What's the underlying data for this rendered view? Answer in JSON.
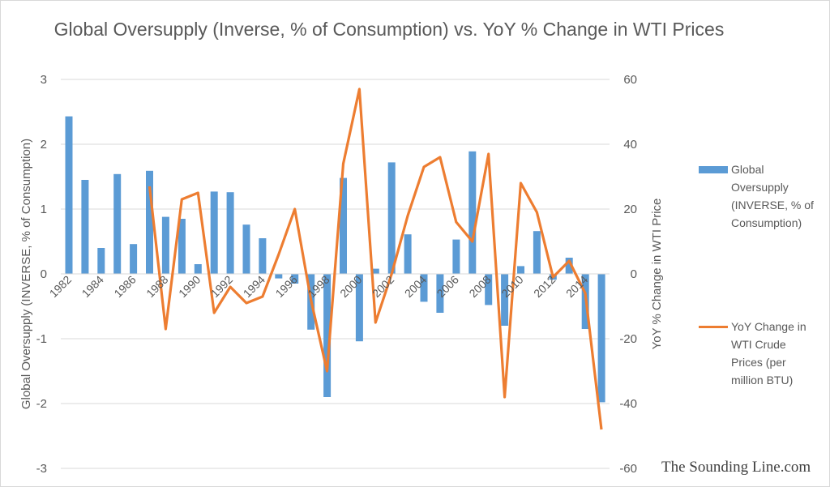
{
  "chart_data": {
    "type": "bar+line",
    "title": "Global Oversupply (Inverse, % of Consumption) vs. YoY % Change in WTI Prices",
    "ylabel_left": "Global Oversupply (INVERSE, % of Consumption)",
    "ylabel_right": "YoY % Change in WTI Price",
    "ylim_left": [
      -3,
      3
    ],
    "ylim_right": [
      -60,
      60
    ],
    "yticks_left": [
      "3",
      "2",
      "1",
      "0",
      "-1",
      "-2",
      "-3"
    ],
    "yticks_right": [
      "60",
      "40",
      "20",
      "0",
      "-20",
      "-40",
      "-60"
    ],
    "categories": [
      1982,
      1983,
      1984,
      1985,
      1986,
      1987,
      1988,
      1989,
      1990,
      1991,
      1992,
      1993,
      1994,
      1995,
      1996,
      1997,
      1998,
      1999,
      2000,
      2001,
      2002,
      2003,
      2004,
      2005,
      2006,
      2007,
      2008,
      2009,
      2010,
      2011,
      2012,
      2013,
      2014,
      2015
    ],
    "xtick_labels": [
      "1982",
      "1984",
      "1986",
      "1988",
      "1990",
      "1992",
      "1994",
      "1996",
      "1998",
      "2000",
      "2002",
      "2004",
      "2006",
      "2008",
      "2010",
      "2012",
      "2014"
    ],
    "grid": true,
    "legend_position": "right",
    "series": [
      {
        "name": "Global Oversupply (INVERSE, % of Consumption)",
        "type": "bar",
        "axis": "left",
        "color": "#5b9bd5",
        "values": [
          2.43,
          1.45,
          0.4,
          1.54,
          0.46,
          1.59,
          0.88,
          0.85,
          0.15,
          1.27,
          1.26,
          0.76,
          0.55,
          -0.07,
          -0.15,
          -0.86,
          -1.9,
          1.48,
          -1.04,
          0.08,
          1.72,
          0.61,
          -0.43,
          -0.6,
          0.53,
          1.89,
          -0.48,
          -0.8,
          0.12,
          0.66,
          -0.09,
          0.25,
          -0.85,
          -1.98
        ]
      },
      {
        "name": "YoY Change in WTI Crude Prices (per million BTU)",
        "type": "line",
        "axis": "right",
        "color": "#ed7d31",
        "values": [
          null,
          null,
          null,
          null,
          null,
          27,
          -17,
          23,
          25,
          -12,
          -4,
          -9,
          -7,
          6,
          20,
          -8,
          -30,
          34,
          57,
          -15,
          0,
          18,
          33,
          36,
          16,
          10,
          37,
          -38,
          28,
          19,
          -1,
          4,
          -6,
          -48
        ]
      }
    ]
  },
  "watermark": "The Sounding Line.com"
}
